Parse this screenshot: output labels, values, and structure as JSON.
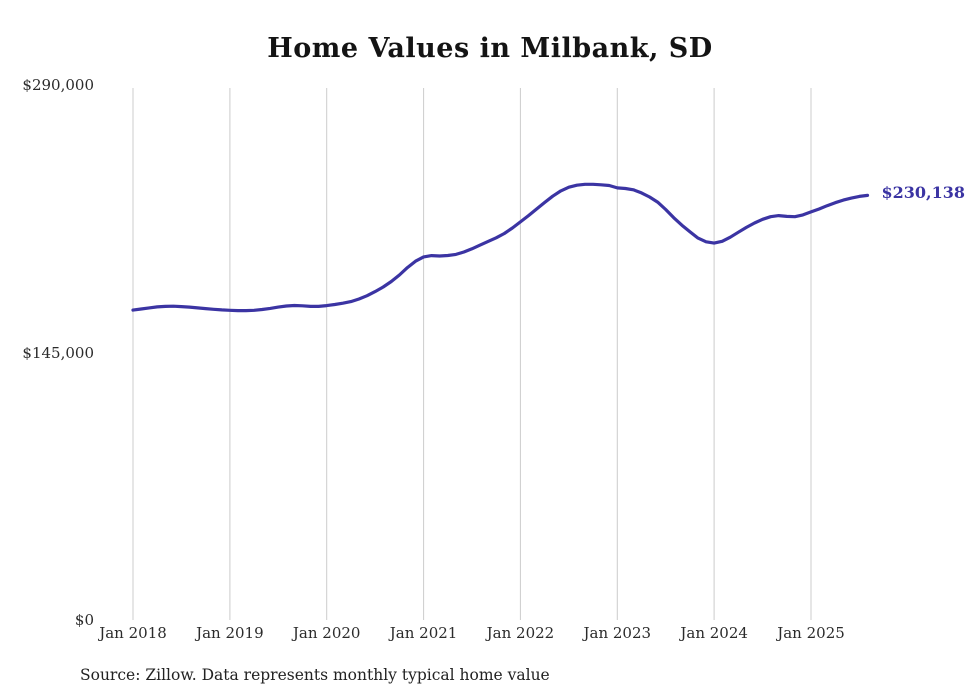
{
  "title": "Home Values in Milbank, SD",
  "source_note": "Source: Zillow. Data represents monthly typical home value",
  "colors": {
    "line": "#3b34a3",
    "grid": "#cccccc",
    "title_text": "#141414",
    "axis_text": "#2b2b2b"
  },
  "chart_data": {
    "type": "line",
    "title": "Home Values in Milbank, SD",
    "xlabel": "",
    "ylabel": "",
    "x_start": "Jan 2018",
    "x_end": "Aug 2025",
    "frequency": "monthly",
    "ylim": [
      0,
      290000
    ],
    "grid": "vertical-only",
    "legend": "none",
    "x_tick_labels": [
      "Jan 2018",
      "Jan 2019",
      "Jan 2020",
      "Jan 2021",
      "Jan 2022",
      "Jan 2023",
      "Jan 2024",
      "Jan 2025"
    ],
    "y_ticks": [
      {
        "value": 0,
        "label": "$0"
      },
      {
        "value": 145000,
        "label": "$145,000"
      },
      {
        "value": 290000,
        "label": "$290,000"
      }
    ],
    "final_value_label": "$230,138",
    "series": [
      {
        "name": "Typical home value",
        "values": [
          168000,
          168600,
          169200,
          169700,
          170000,
          170100,
          169900,
          169600,
          169200,
          168800,
          168400,
          168100,
          167900,
          167700,
          167700,
          167900,
          168300,
          168900,
          169600,
          170200,
          170500,
          170300,
          170000,
          170000,
          170400,
          171000,
          171700,
          172600,
          174000,
          175800,
          178000,
          180500,
          183500,
          187000,
          191000,
          194500,
          196800,
          197500,
          197300,
          197600,
          198200,
          199500,
          201200,
          203200,
          205200,
          207200,
          209500,
          212500,
          215800,
          219200,
          222800,
          226300,
          229700,
          232600,
          234600,
          235700,
          236200,
          236200,
          235900,
          235500,
          234200,
          233900,
          233200,
          231500,
          229300,
          226500,
          222500,
          218000,
          214000,
          210500,
          207000,
          205000,
          204300,
          205300,
          207500,
          210200,
          212800,
          215200,
          217200,
          218600,
          219200,
          218800,
          218600,
          219600,
          221200,
          222800,
          224600,
          226200,
          227600,
          228700,
          229600,
          230138
        ]
      }
    ]
  }
}
